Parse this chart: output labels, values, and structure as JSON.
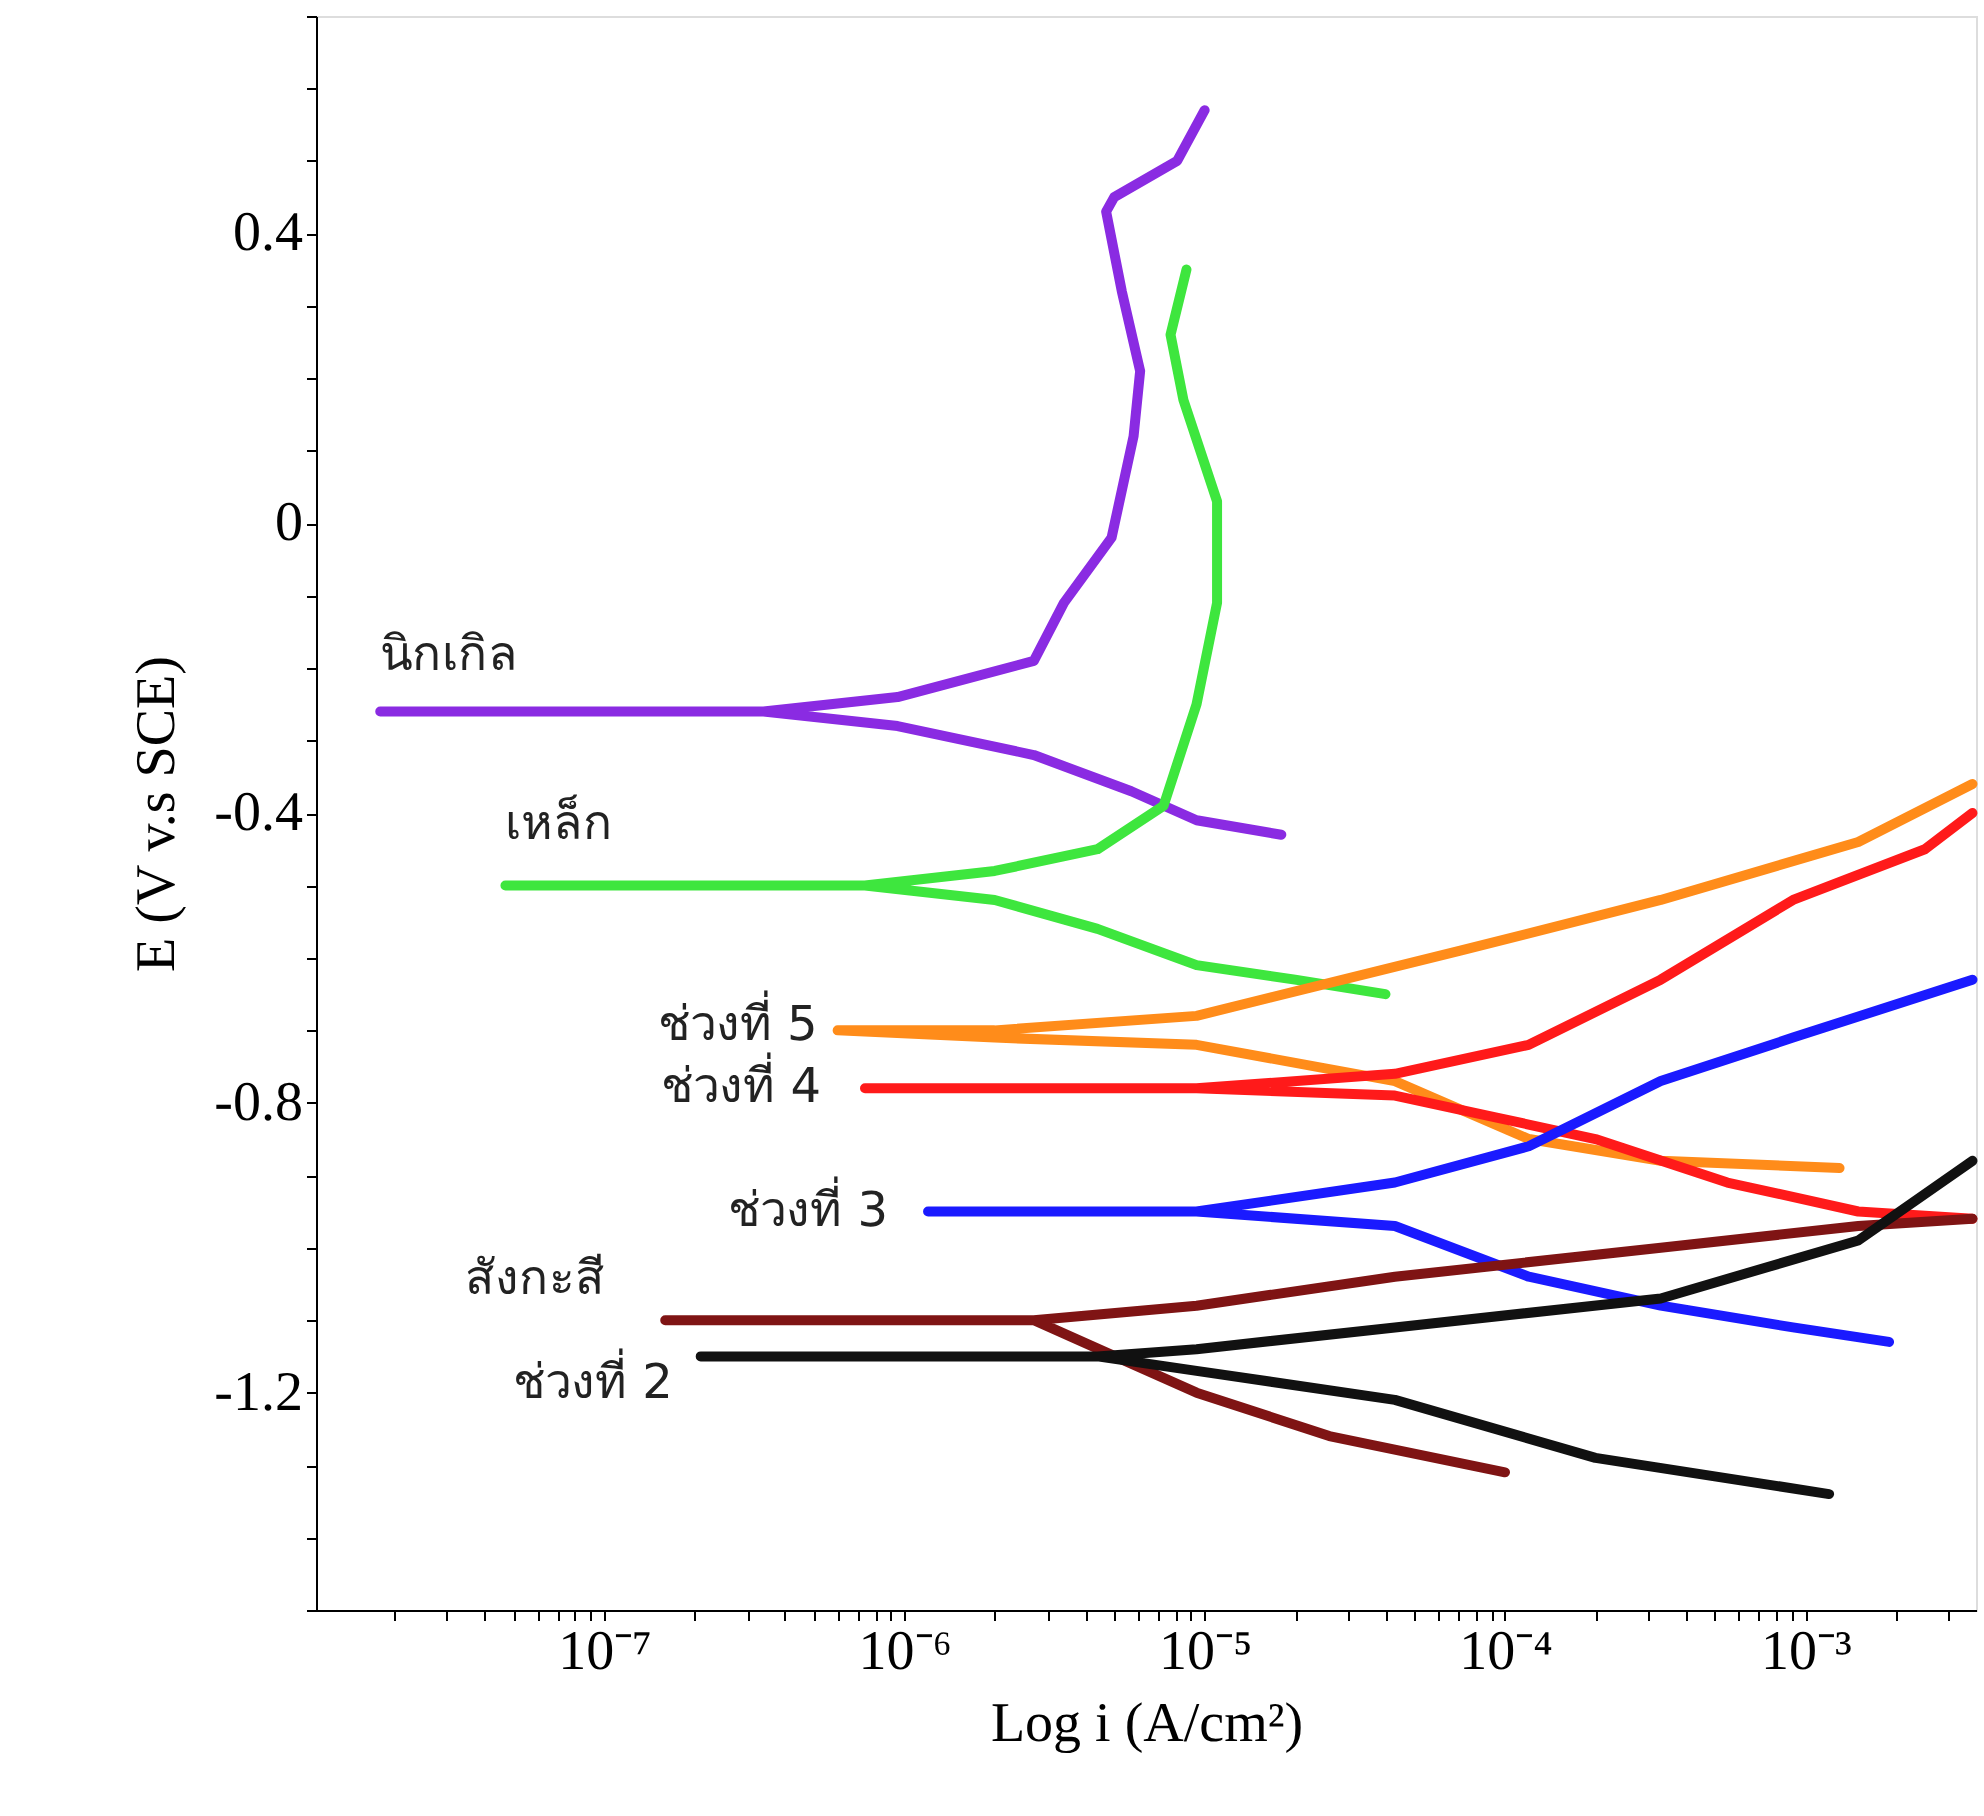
{
  "chart_data": {
    "type": "line",
    "xlabel": "Log i (A/cm²)",
    "ylabel": "E (V v.s SCE)",
    "log": "x",
    "grid": false,
    "xlim": [
      1.1e-08,
      0.0037
    ],
    "ylim": [
      -1.5,
      0.7
    ],
    "xticks": [
      {
        "value": 2e-08,
        "label": null
      },
      {
        "value": 3e-08,
        "label": null
      },
      {
        "value": 4e-08,
        "label": null
      },
      {
        "value": 5e-08,
        "label": null
      },
      {
        "value": 6e-08,
        "label": null
      },
      {
        "value": 7e-08,
        "label": null
      },
      {
        "value": 8e-08,
        "label": null
      },
      {
        "value": 9e-08,
        "label": null
      },
      {
        "value": 1e-07,
        "label": "10⁻⁷"
      },
      {
        "value": 2e-07,
        "label": null
      },
      {
        "value": 3e-07,
        "label": null
      },
      {
        "value": 4e-07,
        "label": null
      },
      {
        "value": 5e-07,
        "label": null
      },
      {
        "value": 6e-07,
        "label": null
      },
      {
        "value": 7e-07,
        "label": null
      },
      {
        "value": 8e-07,
        "label": null
      },
      {
        "value": 9e-07,
        "label": null
      },
      {
        "value": 1e-06,
        "label": "10⁻⁶"
      },
      {
        "value": 2e-06,
        "label": null
      },
      {
        "value": 3e-06,
        "label": null
      },
      {
        "value": 4e-06,
        "label": null
      },
      {
        "value": 5e-06,
        "label": null
      },
      {
        "value": 6e-06,
        "label": null
      },
      {
        "value": 7e-06,
        "label": null
      },
      {
        "value": 8e-06,
        "label": null
      },
      {
        "value": 9e-06,
        "label": null
      },
      {
        "value": 1e-05,
        "label": "10⁻⁵"
      },
      {
        "value": 2e-05,
        "label": null
      },
      {
        "value": 3e-05,
        "label": null
      },
      {
        "value": 4e-05,
        "label": null
      },
      {
        "value": 5e-05,
        "label": null
      },
      {
        "value": 6e-05,
        "label": null
      },
      {
        "value": 7e-05,
        "label": null
      },
      {
        "value": 8e-05,
        "label": null
      },
      {
        "value": 9e-05,
        "label": null
      },
      {
        "value": 0.0001,
        "label": "10⁻⁴"
      },
      {
        "value": 0.0002,
        "label": null
      },
      {
        "value": 0.0003,
        "label": null
      },
      {
        "value": 0.0004,
        "label": null
      },
      {
        "value": 0.0005,
        "label": null
      },
      {
        "value": 0.0006,
        "label": null
      },
      {
        "value": 0.0007,
        "label": null
      },
      {
        "value": 0.0008,
        "label": null
      },
      {
        "value": 0.0009,
        "label": null
      },
      {
        "value": 0.001,
        "label": "10⁻³"
      },
      {
        "value": 0.002,
        "label": null
      },
      {
        "value": 0.003,
        "label": null
      }
    ],
    "yticks": [
      {
        "value": -1.5,
        "label": null
      },
      {
        "value": -1.4,
        "label": null
      },
      {
        "value": -1.3,
        "label": null
      },
      -1.2,
      {
        "value": -1.1,
        "label": null
      },
      {
        "value": -1.0,
        "label": null
      },
      {
        "value": -0.9,
        "label": null
      },
      -0.8,
      {
        "value": -0.7,
        "label": null
      },
      {
        "value": -0.6,
        "label": null
      },
      {
        "value": -0.5,
        "label": null
      },
      -0.4,
      {
        "value": -0.3,
        "label": null
      },
      {
        "value": -0.2,
        "label": null
      },
      {
        "value": -0.1,
        "label": null
      },
      0,
      {
        "value": 0.1,
        "label": null
      },
      {
        "value": 0.2,
        "label": null
      },
      {
        "value": 0.3,
        "label": null
      },
      0.4,
      {
        "value": 0.5,
        "label": null
      },
      {
        "value": 0.6,
        "label": null
      },
      {
        "value": 0.7,
        "label": null
      }
    ],
    "series": [
      {
        "name": "นิกเกิล",
        "color": "#8a2be2",
        "x": [
          1.8e-05,
          9.4e-06,
          5.7e-06,
          2.7e-06,
          9.5e-07,
          3.4e-07,
          1.8e-08,
          3.4e-07,
          9.5e-07,
          2.7e-06,
          3.4e-06,
          4.9e-06,
          5.8e-06,
          6.1e-06,
          5.3e-06,
          4.7e-06,
          5e-06,
          8.1e-06,
          1e-05
        ],
        "values": [
          -0.43,
          -0.41,
          -0.37,
          -0.32,
          -0.28,
          -0.26,
          -0.26,
          -0.26,
          -0.24,
          -0.19,
          -0.11,
          -0.02,
          0.12,
          0.21,
          0.32,
          0.43,
          0.45,
          0.5,
          0.57
        ]
      },
      {
        "name": "เหล็ก",
        "color": "#3ee63e",
        "x": [
          4e-05,
          2e-05,
          9.4e-06,
          4.4e-06,
          2e-06,
          7.4e-07,
          4.7e-08,
          7.4e-07,
          2e-06,
          4.4e-06,
          7.3e-06,
          9.4e-06,
          1.1e-05,
          1.1e-05,
          8.5e-06,
          7.7e-06,
          8.7e-06
        ],
        "values": [
          -0.65,
          -0.63,
          -0.61,
          -0.56,
          -0.52,
          -0.5,
          -0.5,
          -0.5,
          -0.48,
          -0.45,
          -0.39,
          -0.25,
          -0.11,
          0.03,
          0.17,
          0.26,
          0.35
        ]
      },
      {
        "name": "ช่วงที่ 5",
        "color": "#ff8c1a",
        "x": [
          0.0013,
          0.00033,
          0.00012,
          4.3e-05,
          9.4e-06,
          2e-06,
          6e-07,
          2e-06,
          9.4e-06,
          7.1e-05,
          0.00033,
          0.0015,
          0.0036
        ],
        "values": [
          -0.89,
          -0.88,
          -0.85,
          -0.77,
          -0.72,
          -0.71,
          -0.7,
          -0.7,
          -0.68,
          -0.59,
          -0.52,
          -0.44,
          -0.36
        ]
      },
      {
        "name": "ช่วงที่ 4",
        "color": "#ff1a1a",
        "x": [
          0.0036,
          0.0015,
          0.00055,
          0.0002,
          9.3e-05,
          4.3e-05,
          9.4e-06,
          7.4e-07,
          9.4e-06,
          4.3e-05,
          0.00012,
          0.00033,
          0.00091,
          0.0025,
          0.0036
        ],
        "values": [
          -0.96,
          -0.95,
          -0.91,
          -0.85,
          -0.82,
          -0.79,
          -0.78,
          -0.78,
          -0.78,
          -0.76,
          -0.72,
          -0.63,
          -0.52,
          -0.45,
          -0.4
        ]
      },
      {
        "name": "ช่วงที่ 3",
        "color": "#1a1aff",
        "x": [
          0.0019,
          0.00091,
          0.00033,
          0.00012,
          4.3e-05,
          9.4e-06,
          1.2e-06,
          9.4e-06,
          4.3e-05,
          0.00012,
          0.00033,
          0.00091,
          0.0036
        ],
        "values": [
          -1.13,
          -1.11,
          -1.08,
          -1.04,
          -0.97,
          -0.95,
          -0.95,
          -0.95,
          -0.91,
          -0.86,
          -0.77,
          -0.71,
          -0.63
        ]
      },
      {
        "name": "สังกะสี",
        "color": "#7f1414",
        "x": [
          0.0001,
          2.6e-05,
          9.4e-06,
          5.7e-06,
          2.7e-06,
          1.6e-07,
          2.7e-06,
          9.4e-06,
          4.3e-05,
          0.00033,
          0.0015,
          0.0036
        ],
        "values": [
          -1.31,
          -1.26,
          -1.2,
          -1.16,
          -1.1,
          -1.1,
          -1.1,
          -1.08,
          -1.04,
          -1.0,
          -0.97,
          -0.96
        ]
      },
      {
        "name": "ช่วงที่ 2",
        "color": "#111111",
        "x": [
          0.0012,
          0.0002,
          4.3e-05,
          9.4e-06,
          4.4e-06,
          2.1e-07,
          4.4e-06,
          9.4e-06,
          4.3e-05,
          0.00033,
          0.0015,
          0.0036
        ],
        "values": [
          -1.34,
          -1.29,
          -1.21,
          -1.17,
          -1.15,
          -1.15,
          -1.15,
          -1.14,
          -1.11,
          -1.07,
          -0.99,
          -0.88
        ]
      }
    ]
  }
}
